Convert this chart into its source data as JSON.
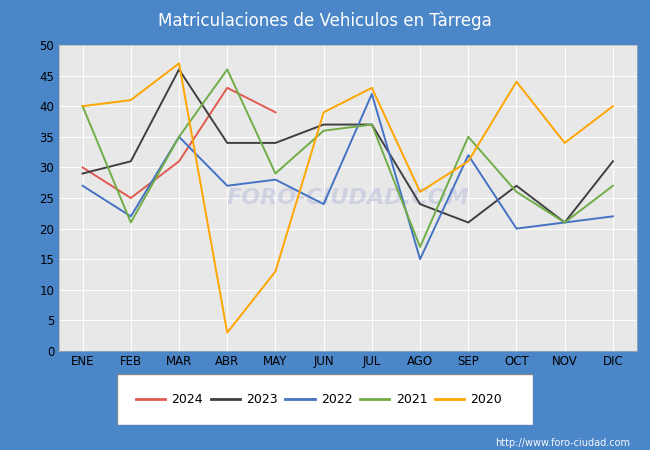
{
  "title": "Matriculaciones de Vehiculos en Tàrrega",
  "title_bg_color": "#4a86c8",
  "title_text_color": "white",
  "plot_bg_color": "#e8e8e8",
  "grid_color": "white",
  "outer_bg_color": "#4a86c8",
  "months": [
    "ENE",
    "FEB",
    "MAR",
    "ABR",
    "MAY",
    "JUN",
    "JUL",
    "AGO",
    "SEP",
    "OCT",
    "NOV",
    "DIC"
  ],
  "series": {
    "2024": {
      "color": "#e05a50",
      "data": [
        30,
        25,
        31,
        43,
        39,
        null,
        null,
        null,
        null,
        null,
        null,
        null
      ]
    },
    "2023": {
      "color": "#404040",
      "data": [
        29,
        31,
        46,
        34,
        34,
        37,
        37,
        24,
        21,
        27,
        21,
        31
      ]
    },
    "2022": {
      "color": "#4472c4",
      "data": [
        27,
        22,
        35,
        27,
        28,
        24,
        42,
        15,
        32,
        20,
        21,
        22
      ]
    },
    "2021": {
      "color": "#70ad47",
      "data": [
        40,
        21,
        35,
        46,
        29,
        36,
        37,
        17,
        35,
        26,
        21,
        27
      ]
    },
    "2020": {
      "color": "#ffa500",
      "data": [
        40,
        41,
        47,
        3,
        13,
        39,
        43,
        26,
        31,
        44,
        34,
        40
      ]
    }
  },
  "ylim": [
    0,
    50
  ],
  "yticks": [
    0,
    5,
    10,
    15,
    20,
    25,
    30,
    35,
    40,
    45,
    50
  ],
  "watermark_text": "FORO-CIUDAD.COM",
  "watermark_url": "http://www.foro-ciudad.com",
  "legend_order": [
    "2024",
    "2023",
    "2022",
    "2021",
    "2020"
  ]
}
